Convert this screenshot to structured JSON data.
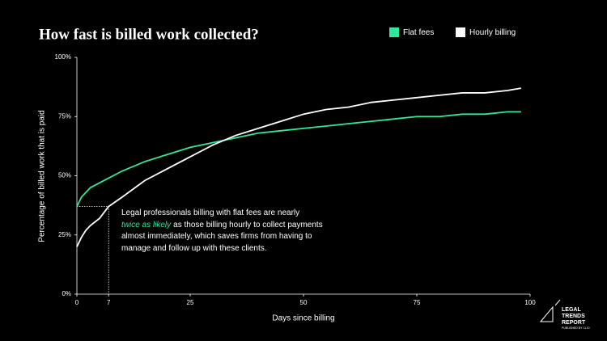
{
  "chart_data": {
    "type": "line",
    "title": "How fast is billed work collected?",
    "x_label": "Days since billing",
    "y_label": "Percentage of billed work that is paid",
    "x": [
      0,
      1,
      2,
      3,
      5,
      7,
      10,
      15,
      20,
      25,
      30,
      35,
      40,
      45,
      50,
      55,
      60,
      65,
      70,
      75,
      80,
      85,
      90,
      95,
      98
    ],
    "series": [
      {
        "name": "Flat fees",
        "color": "#2ee8a0",
        "values": [
          37,
          41,
          43,
          45,
          47,
          49,
          52,
          56,
          59,
          62,
          64,
          66,
          68,
          69,
          70,
          71,
          72,
          73,
          74,
          75,
          75,
          76,
          76,
          77,
          77
        ]
      },
      {
        "name": "Hourly billing",
        "color": "#ffffff",
        "values": [
          20,
          24,
          27,
          29,
          32,
          37,
          41,
          48,
          53,
          58,
          63,
          67,
          70,
          73,
          76,
          78,
          79,
          81,
          82,
          83,
          84,
          85,
          85,
          86,
          87
        ]
      }
    ],
    "xlim": [
      0,
      100
    ],
    "xticks": [
      0,
      7,
      25,
      50,
      75,
      100
    ],
    "ylim": [
      0,
      100
    ],
    "yticks": [
      {
        "value": 0,
        "label": "0%"
      },
      {
        "value": 25,
        "label": "25%"
      },
      {
        "value": 50,
        "label": "50%"
      },
      {
        "value": 75,
        "label": "75%"
      },
      {
        "value": 100,
        "label": "100%"
      }
    ],
    "grid": false,
    "legend": "top-right",
    "annotation": [
      "Legal professionals billing with flat fees are nearly",
      "twice as likely",
      "as those billing hourly to collect payments",
      "almost immediately, which saves firms from having to",
      "manage and follow up with these clients."
    ],
    "branding": [
      "LEGAL",
      "TRENDS",
      "REPORT",
      "PUBLISHED BY CLIO"
    ]
  }
}
